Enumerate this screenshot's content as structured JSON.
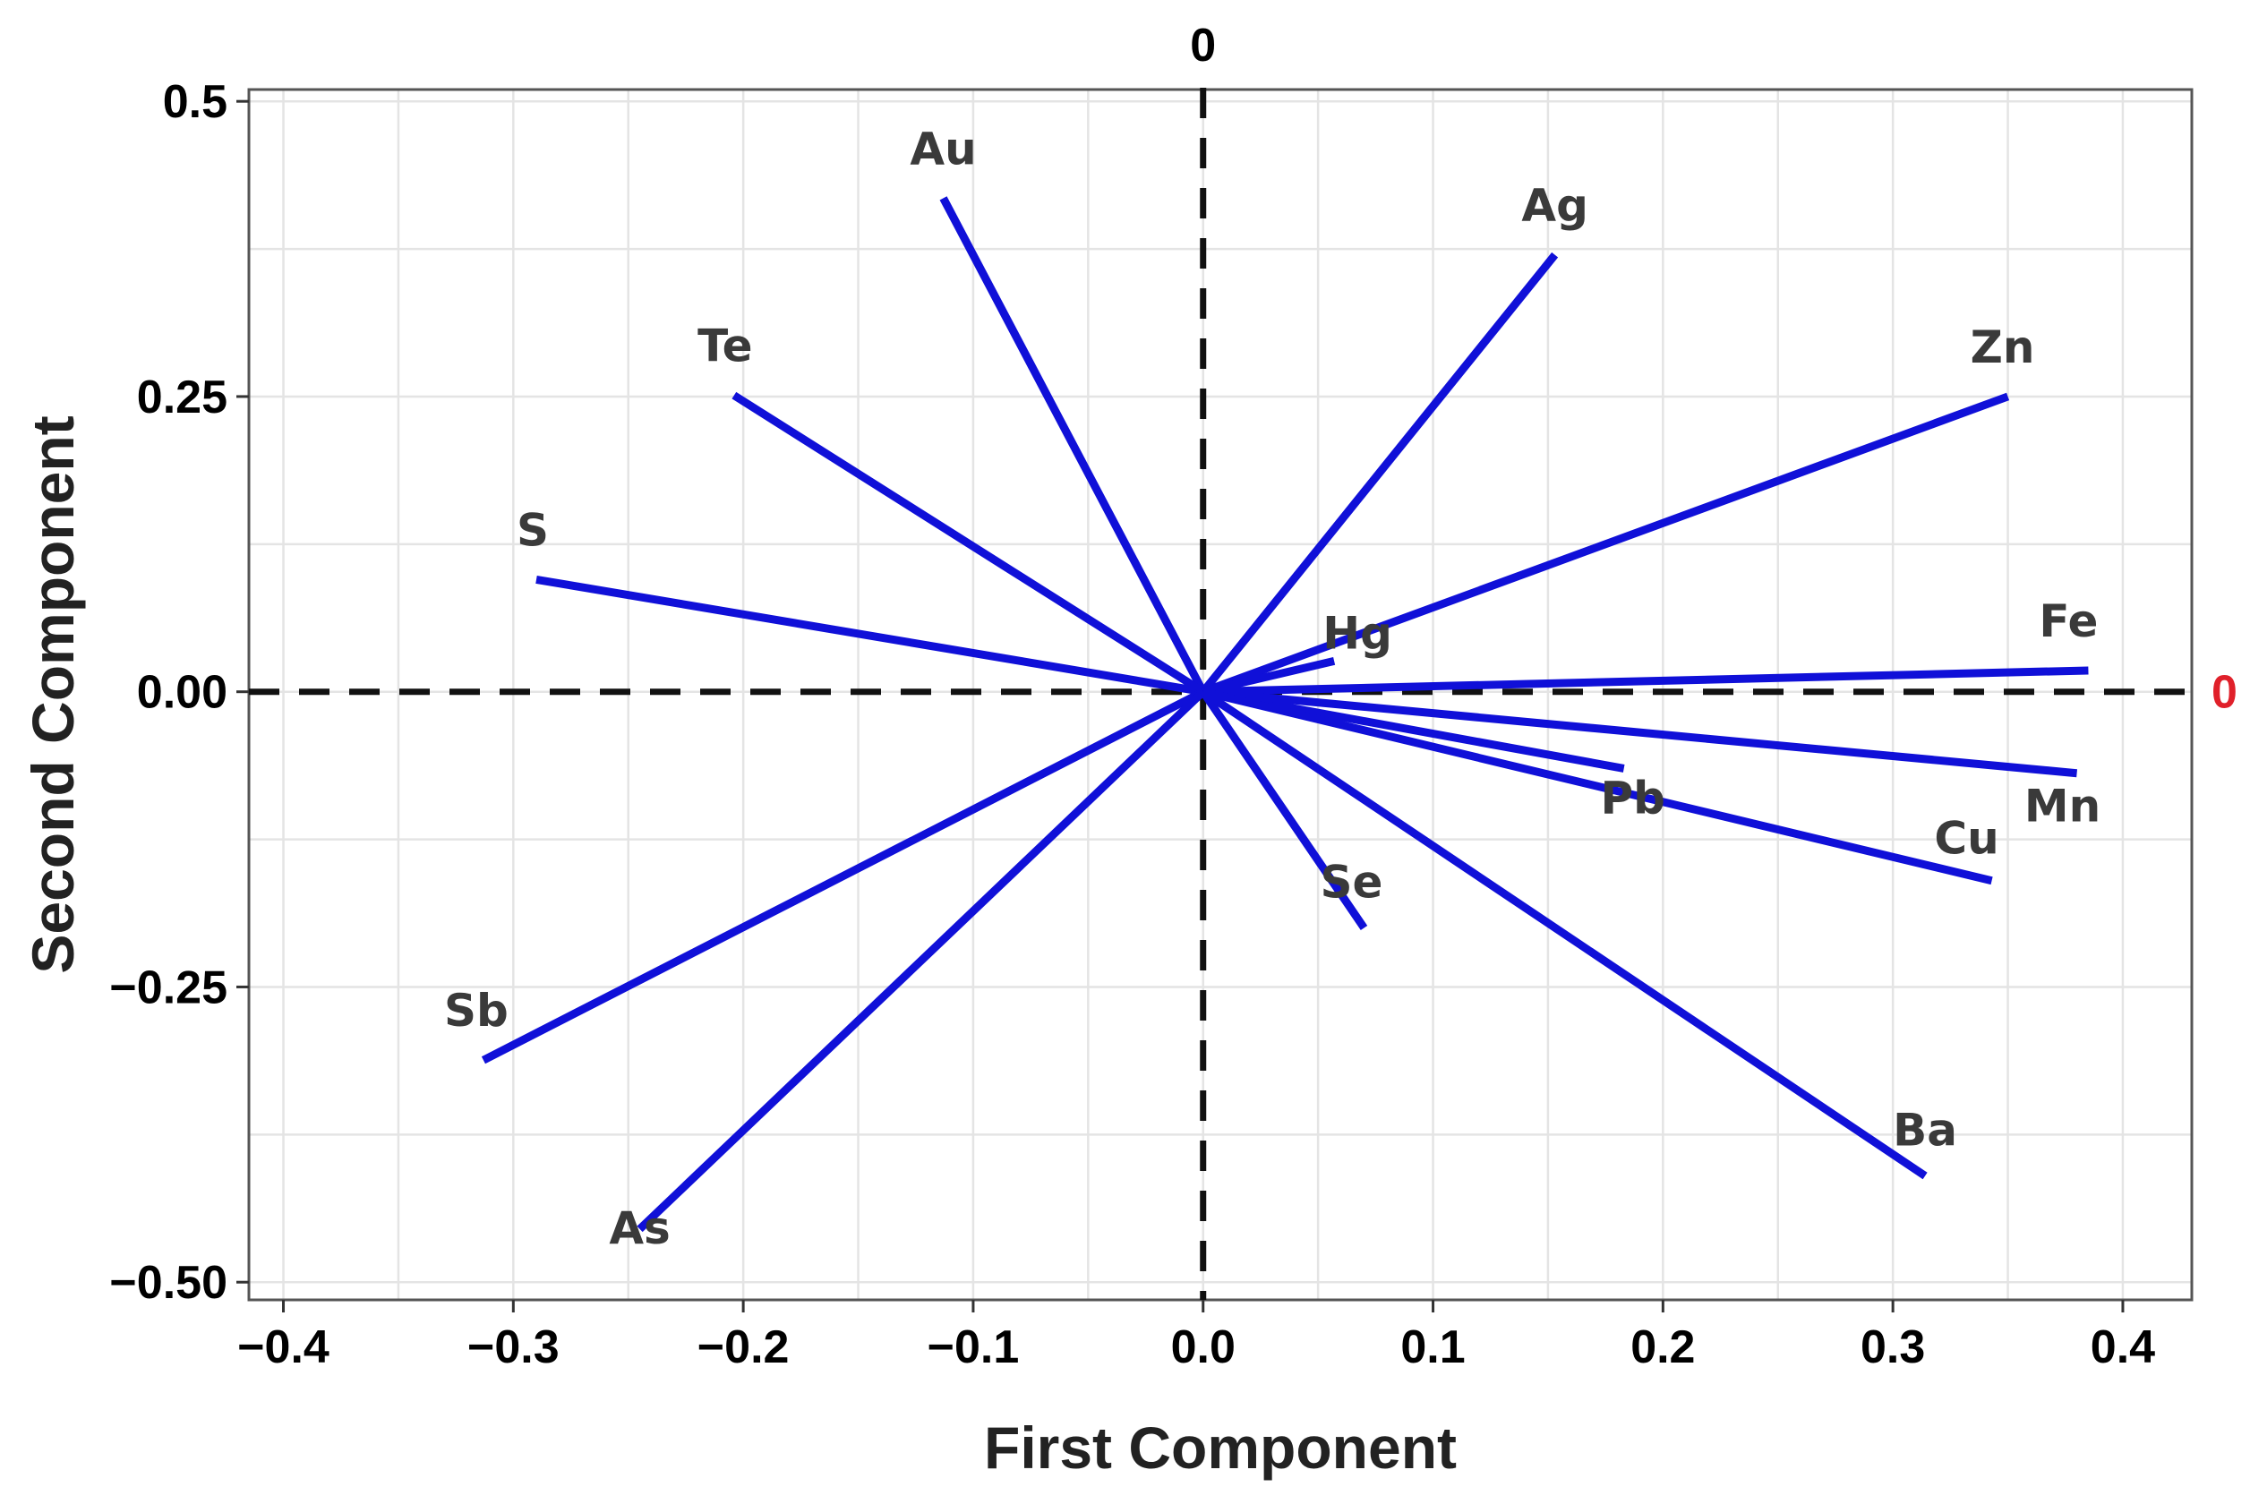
{
  "chart_data": {
    "type": "biplot",
    "xlabel": "First Component",
    "ylabel": "Second Component",
    "xlim": [
      -0.415,
      0.43
    ],
    "ylim": [
      -0.515,
      0.51
    ],
    "x_ticks": [
      {
        "value": -0.4,
        "label": "−0.4"
      },
      {
        "value": -0.3,
        "label": "−0.3"
      },
      {
        "value": -0.2,
        "label": "−0.2"
      },
      {
        "value": -0.1,
        "label": "−0.1"
      },
      {
        "value": 0.0,
        "label": "0.0"
      },
      {
        "value": 0.1,
        "label": "0.1"
      },
      {
        "value": 0.2,
        "label": "0.2"
      },
      {
        "value": 0.3,
        "label": "0.3"
      },
      {
        "value": 0.4,
        "label": "0.4"
      }
    ],
    "y_ticks": [
      {
        "value": 0.5,
        "label": "0.5"
      },
      {
        "value": 0.25,
        "label": "0.25"
      },
      {
        "value": 0.0,
        "label": "0.00"
      },
      {
        "value": -0.25,
        "label": "−0.25"
      },
      {
        "value": -0.5,
        "label": "−0.50"
      }
    ],
    "grid": true,
    "reference_lines": {
      "vertical": {
        "value": 0,
        "label": "0",
        "label_color": "#000000"
      },
      "horizontal": {
        "value": 0,
        "label": "0",
        "label_color": "#e0202a"
      }
    },
    "series": [
      {
        "color": "#1010d8",
        "vectors": [
          {
            "label": "Au",
            "x": -0.113,
            "y": 0.418
          },
          {
            "label": "Ag",
            "x": 0.153,
            "y": 0.37
          },
          {
            "label": "Te",
            "x": -0.204,
            "y": 0.251
          },
          {
            "label": "Zn",
            "x": 0.35,
            "y": 0.25
          },
          {
            "label": "S",
            "x": -0.29,
            "y": 0.095
          },
          {
            "label": "Hg",
            "x": 0.057,
            "y": 0.026
          },
          {
            "label": "Fe",
            "x": 0.385,
            "y": 0.018
          },
          {
            "label": "Pb",
            "x": 0.183,
            "y": -0.065
          },
          {
            "label": "Mn",
            "x": 0.38,
            "y": -0.069
          },
          {
            "label": "Cu",
            "x": 0.343,
            "y": -0.16
          },
          {
            "label": "Se",
            "x": 0.07,
            "y": -0.2
          },
          {
            "label": "Sb",
            "x": -0.313,
            "y": -0.312
          },
          {
            "label": "As",
            "x": -0.245,
            "y": -0.455
          },
          {
            "label": "Ba",
            "x": 0.314,
            "y": -0.41
          }
        ]
      }
    ]
  }
}
